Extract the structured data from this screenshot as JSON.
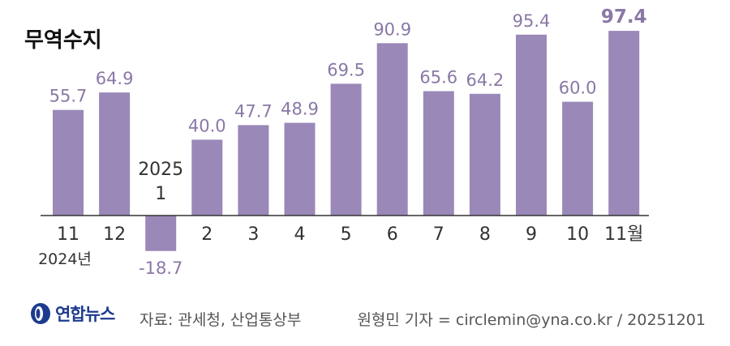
{
  "chart_data": {
    "type": "bar",
    "title": "무역수지",
    "categories": [
      "11",
      "12",
      "1",
      "2",
      "3",
      "4",
      "5",
      "6",
      "7",
      "8",
      "9",
      "10",
      "11월"
    ],
    "values": [
      55.7,
      64.9,
      -18.7,
      40.0,
      47.7,
      48.9,
      69.5,
      90.9,
      65.6,
      64.2,
      95.4,
      60.0,
      97.4
    ],
    "value_labels": [
      "55.7",
      "64.9",
      "-18.7",
      "40.0",
      "47.7",
      "48.9",
      "69.5",
      "90.9",
      "65.6",
      "64.2",
      "95.4",
      "60.0",
      "97.4"
    ],
    "year_labels": [
      {
        "category_index": 0,
        "text": "2024년"
      },
      {
        "category_index": 2,
        "text": "2025"
      }
    ],
    "highlight_index": 12,
    "bar_color": "#9a88b8",
    "value_color": "#8a78a6",
    "ylim": [
      -25,
      105
    ],
    "grid": false,
    "legend": "none"
  },
  "footer": {
    "logo_text": "연합뉴스",
    "source": "자료: 관세청, 산업통상부",
    "credit": "원형민 기자 = circlemin@yna.co.kr / 20251201"
  }
}
